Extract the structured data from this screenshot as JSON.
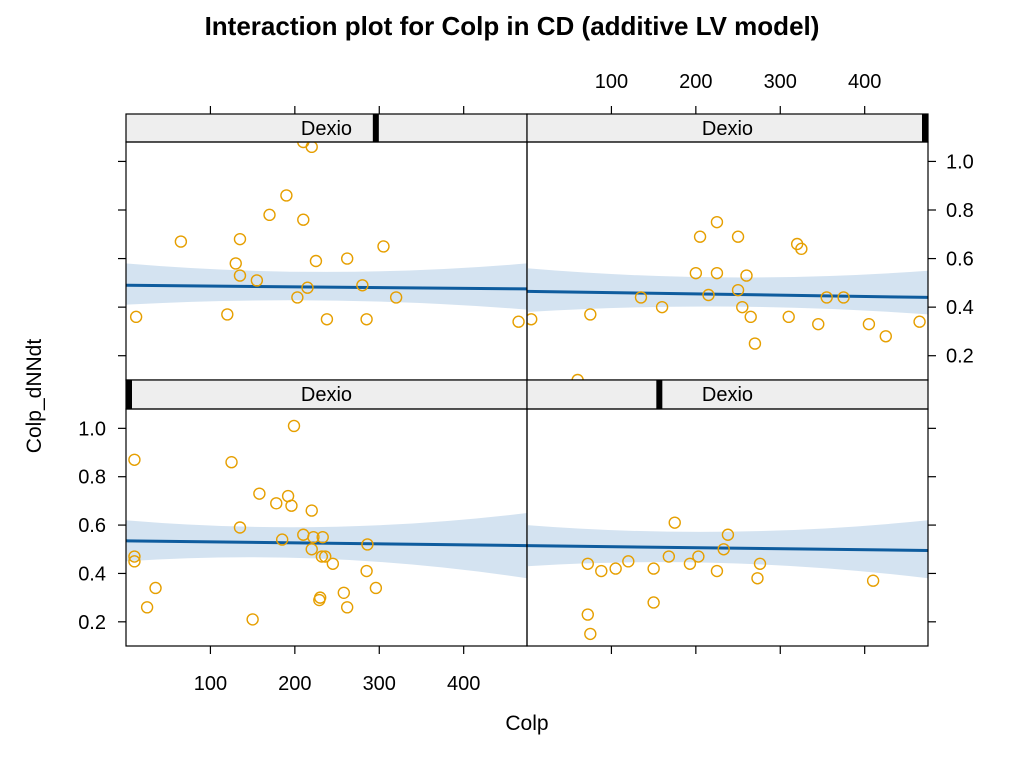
{
  "chart_data": {
    "type": "scatter",
    "title": "Interaction plot for Colp in CD (additive LV model)",
    "xlabel": "Colp",
    "ylabel": "Colp_dNNdt",
    "xlim": [
      0,
      475
    ],
    "ylim": [
      0.1,
      1.08
    ],
    "x_ticks": [
      100,
      200,
      300,
      400
    ],
    "y_ticks": [
      0.2,
      0.4,
      0.6,
      0.8,
      1.0
    ],
    "colors": {
      "points": "#E69F00",
      "line": "#0E5C9E",
      "band": "#C6D9EC",
      "strip_bg": "#EEEEEE"
    },
    "panels": [
      {
        "name": "top-left",
        "strip_label": "Dexio",
        "strip_marker": 0.623,
        "points": [
          [
            12,
            0.36
          ],
          [
            65,
            0.67
          ],
          [
            120,
            0.37
          ],
          [
            130,
            0.58
          ],
          [
            135,
            0.53
          ],
          [
            135,
            0.68
          ],
          [
            155,
            0.51
          ],
          [
            170,
            0.78
          ],
          [
            190,
            0.86
          ],
          [
            203,
            0.44
          ],
          [
            210,
            0.76
          ],
          [
            210,
            1.08
          ],
          [
            215,
            0.48
          ],
          [
            220,
            1.06
          ],
          [
            225,
            0.59
          ],
          [
            238,
            0.35
          ],
          [
            262,
            0.6
          ],
          [
            280,
            0.49
          ],
          [
            285,
            0.35
          ],
          [
            305,
            0.65
          ],
          [
            320,
            0.44
          ],
          [
            465,
            0.34
          ]
        ],
        "fit": {
          "y_start": 0.49,
          "y_end": 0.475,
          "band_start": [
            0.41,
            0.58
          ],
          "band_end": [
            0.39,
            0.58
          ],
          "band_mid": [
            0.455,
            0.51
          ]
        }
      },
      {
        "name": "top-right",
        "strip_label": "Dexio",
        "strip_marker": 0.995,
        "points": [
          [
            5,
            0.35
          ],
          [
            60,
            0.1
          ],
          [
            75,
            0.37
          ],
          [
            135,
            0.44
          ],
          [
            160,
            0.4
          ],
          [
            200,
            0.54
          ],
          [
            205,
            0.69
          ],
          [
            215,
            0.45
          ],
          [
            225,
            0.75
          ],
          [
            225,
            0.54
          ],
          [
            250,
            0.47
          ],
          [
            250,
            0.69
          ],
          [
            255,
            0.4
          ],
          [
            260,
            0.53
          ],
          [
            265,
            0.36
          ],
          [
            270,
            0.25
          ],
          [
            310,
            0.36
          ],
          [
            320,
            0.66
          ],
          [
            325,
            0.64
          ],
          [
            345,
            0.33
          ],
          [
            355,
            0.44
          ],
          [
            375,
            0.44
          ],
          [
            405,
            0.33
          ],
          [
            425,
            0.28
          ],
          [
            465,
            0.34
          ]
        ],
        "fit": {
          "y_start": 0.465,
          "y_end": 0.44,
          "band_start": [
            0.38,
            0.56
          ],
          "band_end": [
            0.37,
            0.55
          ],
          "band_mid": [
            0.43,
            0.49
          ]
        }
      },
      {
        "name": "bottom-left",
        "strip_label": "Dexio",
        "strip_marker": 0.0,
        "points": [
          [
            10,
            0.87
          ],
          [
            10,
            0.47
          ],
          [
            10,
            0.45
          ],
          [
            25,
            0.26
          ],
          [
            35,
            0.34
          ],
          [
            125,
            0.86
          ],
          [
            135,
            0.59
          ],
          [
            150,
            0.21
          ],
          [
            158,
            0.73
          ],
          [
            178,
            0.69
          ],
          [
            185,
            0.54
          ],
          [
            192,
            0.72
          ],
          [
            196,
            0.68
          ],
          [
            199,
            1.01
          ],
          [
            210,
            0.56
          ],
          [
            220,
            0.66
          ],
          [
            220,
            0.5
          ],
          [
            222,
            0.55
          ],
          [
            229,
            0.29
          ],
          [
            230,
            0.3
          ],
          [
            232,
            0.47
          ],
          [
            233,
            0.55
          ],
          [
            236,
            0.47
          ],
          [
            245,
            0.44
          ],
          [
            258,
            0.32
          ],
          [
            262,
            0.26
          ],
          [
            285,
            0.41
          ],
          [
            286,
            0.52
          ],
          [
            296,
            0.34
          ]
        ],
        "fit": {
          "y_start": 0.535,
          "y_end": 0.515,
          "band_start": [
            0.45,
            0.62
          ],
          "band_end": [
            0.38,
            0.65
          ],
          "band_mid": [
            0.505,
            0.55
          ]
        }
      },
      {
        "name": "bottom-right",
        "strip_label": "Dexio",
        "strip_marker": 0.33,
        "points": [
          [
            72,
            0.44
          ],
          [
            72,
            0.23
          ],
          [
            75,
            0.15
          ],
          [
            88,
            0.41
          ],
          [
            105,
            0.42
          ],
          [
            120,
            0.45
          ],
          [
            150,
            0.28
          ],
          [
            150,
            0.42
          ],
          [
            168,
            0.47
          ],
          [
            175,
            0.61
          ],
          [
            193,
            0.44
          ],
          [
            203,
            0.47
          ],
          [
            225,
            0.41
          ],
          [
            233,
            0.5
          ],
          [
            238,
            0.56
          ],
          [
            273,
            0.38
          ],
          [
            276,
            0.44
          ],
          [
            410,
            0.37
          ]
        ],
        "fit": {
          "y_start": 0.515,
          "y_end": 0.495,
          "band_start": [
            0.43,
            0.6
          ],
          "band_end": [
            0.38,
            0.62
          ],
          "band_mid": [
            0.48,
            0.535
          ]
        }
      }
    ]
  }
}
